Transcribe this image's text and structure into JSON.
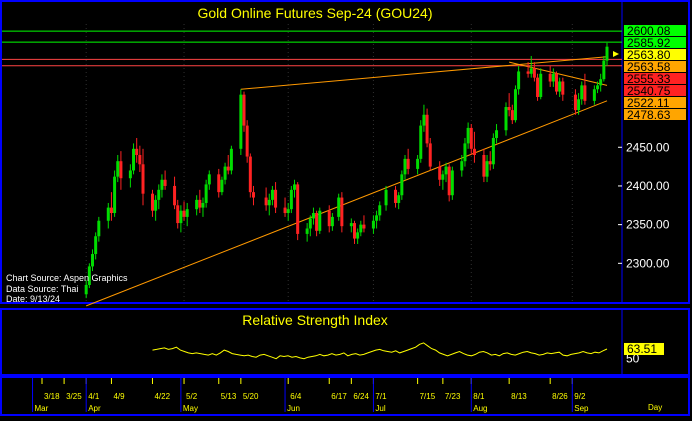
{
  "title": "Gold Online Futures Sep-24 (GOU24)",
  "info": {
    "chart_source": "Chart Source: Aspen Graphics",
    "data_source": "Data Source: Thai",
    "date": "Date: 9/13/24"
  },
  "colors": {
    "background": "#000000",
    "panel_border": "#0000ff",
    "title": "#ffff00",
    "up_candle": "#00dd00",
    "down_candle": "#ff2222",
    "trendline": "#ff9900",
    "resistance_green": "#00ff00",
    "resistance_red": "#ff4444",
    "rsi_line": "#ffff00",
    "axis_text": "#ffffff"
  },
  "chart_data": [
    {
      "type": "candlestick",
      "title": "Gold Online Futures Sep-24 (GOU24)",
      "ylim": [
        2250,
        2630
      ],
      "y_ticks": [
        2300,
        2350,
        2400,
        2450
      ],
      "x_tick_labels": [
        "3/18",
        "3/25",
        "4/1",
        "4/9",
        "4/22",
        "5/2",
        "5/13",
        "5/20",
        "6/4",
        "6/17",
        "6/24",
        "7/1",
        "7/15",
        "7/23",
        "8/1",
        "8/13",
        "8/26",
        "9/2"
      ],
      "month_labels": [
        "Mar",
        "Apr",
        "May",
        "Jun",
        "Jul",
        "Aug",
        "Sep"
      ],
      "right_label": "Day",
      "price_levels": [
        {
          "value": 2600.08,
          "label": "2600.08",
          "color": "#00ff00",
          "label_bg": "#00ff00",
          "label_fg": "#000000"
        },
        {
          "value": 2585.92,
          "label": "2585.92",
          "color": "#00ff00",
          "label_bg": "#00ff00",
          "label_fg": "#000000"
        },
        {
          "value": 2563.8,
          "label": "2563.80",
          "color": null,
          "label_bg": "#ffff00",
          "label_fg": "#000000"
        },
        {
          "value": 2563.58,
          "label": "2563.58",
          "color": "#ff4444",
          "label_bg": "#ffa500",
          "label_fg": "#000000"
        },
        {
          "value": 2555.33,
          "label": "2555.33",
          "color": "#ff4444",
          "label_bg": "#ff2222",
          "label_fg": "#000000"
        },
        {
          "value": 2540.75,
          "label": "2540.75",
          "color": null,
          "label_bg": "#ff2222",
          "label_fg": "#000000"
        },
        {
          "value": 2522.11,
          "label": "2522.11",
          "color": null,
          "label_bg": "#ffa500",
          "label_fg": "#000000"
        },
        {
          "value": 2478.63,
          "label": "2478.63",
          "color": null,
          "label_bg": "#ffa500",
          "label_fg": "#000000"
        }
      ],
      "trendlines": [
        {
          "from": [
            "5/20",
            2525
          ],
          "to": [
            "9/13",
            2567
          ]
        },
        {
          "from": [
            "4/1",
            2245
          ],
          "to": [
            "9/13",
            2510
          ]
        },
        {
          "from": [
            "8/13",
            2560
          ],
          "to": [
            "9/13",
            2530
          ]
        }
      ],
      "candles": [
        {
          "date": "4/1",
          "o": 2260,
          "h": 2278,
          "l": 2255,
          "c": 2272
        },
        {
          "date": "4/2",
          "o": 2272,
          "h": 2300,
          "l": 2268,
          "c": 2296
        },
        {
          "date": "4/3",
          "o": 2296,
          "h": 2318,
          "l": 2290,
          "c": 2312
        },
        {
          "date": "4/4",
          "o": 2312,
          "h": 2340,
          "l": 2305,
          "c": 2335
        },
        {
          "date": "4/5",
          "o": 2335,
          "h": 2360,
          "l": 2328,
          "c": 2355
        },
        {
          "date": "4/8",
          "o": 2355,
          "h": 2378,
          "l": 2345,
          "c": 2372
        },
        {
          "date": "4/9",
          "o": 2372,
          "h": 2392,
          "l": 2355,
          "c": 2365
        },
        {
          "date": "4/10",
          "o": 2365,
          "h": 2420,
          "l": 2360,
          "c": 2412
        },
        {
          "date": "4/11",
          "o": 2412,
          "h": 2440,
          "l": 2405,
          "c": 2432
        },
        {
          "date": "4/12",
          "o": 2432,
          "h": 2445,
          "l": 2395,
          "c": 2410
        },
        {
          "date": "4/15",
          "o": 2410,
          "h": 2428,
          "l": 2398,
          "c": 2420
        },
        {
          "date": "4/16",
          "o": 2420,
          "h": 2455,
          "l": 2415,
          "c": 2448
        },
        {
          "date": "4/17",
          "o": 2448,
          "h": 2462,
          "l": 2430,
          "c": 2440
        },
        {
          "date": "4/18",
          "o": 2440,
          "h": 2452,
          "l": 2418,
          "c": 2428
        },
        {
          "date": "4/19",
          "o": 2428,
          "h": 2448,
          "l": 2375,
          "c": 2390
        },
        {
          "date": "4/22",
          "o": 2390,
          "h": 2395,
          "l": 2360,
          "c": 2368
        },
        {
          "date": "4/23",
          "o": 2368,
          "h": 2388,
          "l": 2355,
          "c": 2382
        },
        {
          "date": "4/24",
          "o": 2382,
          "h": 2402,
          "l": 2370,
          "c": 2395
        },
        {
          "date": "4/25",
          "o": 2395,
          "h": 2415,
          "l": 2385,
          "c": 2408
        },
        {
          "date": "4/26",
          "o": 2408,
          "h": 2420,
          "l": 2395,
          "c": 2400
        },
        {
          "date": "4/29",
          "o": 2400,
          "h": 2412,
          "l": 2370,
          "c": 2375
        },
        {
          "date": "4/30",
          "o": 2375,
          "h": 2382,
          "l": 2345,
          "c": 2352
        },
        {
          "date": "5/1",
          "o": 2352,
          "h": 2375,
          "l": 2340,
          "c": 2368
        },
        {
          "date": "5/2",
          "o": 2368,
          "h": 2380,
          "l": 2355,
          "c": 2360
        },
        {
          "date": "5/3",
          "o": 2360,
          "h": 2378,
          "l": 2348,
          "c": 2370
        },
        {
          "date": "5/6",
          "o": 2370,
          "h": 2388,
          "l": 2362,
          "c": 2382
        },
        {
          "date": "5/7",
          "o": 2382,
          "h": 2395,
          "l": 2365,
          "c": 2372
        },
        {
          "date": "5/8",
          "o": 2372,
          "h": 2385,
          "l": 2360,
          "c": 2378
        },
        {
          "date": "5/9",
          "o": 2378,
          "h": 2408,
          "l": 2372,
          "c": 2402
        },
        {
          "date": "5/10",
          "o": 2402,
          "h": 2420,
          "l": 2395,
          "c": 2415
        },
        {
          "date": "5/13",
          "o": 2415,
          "h": 2422,
          "l": 2385,
          "c": 2392
        },
        {
          "date": "5/14",
          "o": 2392,
          "h": 2412,
          "l": 2388,
          "c": 2408
        },
        {
          "date": "5/15",
          "o": 2408,
          "h": 2430,
          "l": 2402,
          "c": 2425
        },
        {
          "date": "5/16",
          "o": 2425,
          "h": 2440,
          "l": 2415,
          "c": 2420
        },
        {
          "date": "5/17",
          "o": 2420,
          "h": 2452,
          "l": 2415,
          "c": 2448
        },
        {
          "date": "5/20",
          "o": 2448,
          "h": 2525,
          "l": 2440,
          "c": 2518
        },
        {
          "date": "5/21",
          "o": 2518,
          "h": 2522,
          "l": 2470,
          "c": 2478
        },
        {
          "date": "5/22",
          "o": 2478,
          "h": 2485,
          "l": 2430,
          "c": 2438
        },
        {
          "date": "5/23",
          "o": 2438,
          "h": 2442,
          "l": 2385,
          "c": 2392
        },
        {
          "date": "5/24",
          "o": 2392,
          "h": 2400,
          "l": 2375,
          "c": 2385
        },
        {
          "date": "5/28",
          "o": 2385,
          "h": 2398,
          "l": 2368,
          "c": 2375
        },
        {
          "date": "5/29",
          "o": 2375,
          "h": 2390,
          "l": 2362,
          "c": 2382
        },
        {
          "date": "5/30",
          "o": 2382,
          "h": 2400,
          "l": 2375,
          "c": 2395
        },
        {
          "date": "5/31",
          "o": 2395,
          "h": 2405,
          "l": 2365,
          "c": 2372
        },
        {
          "date": "6/3",
          "o": 2372,
          "h": 2385,
          "l": 2360,
          "c": 2365
        },
        {
          "date": "6/4",
          "o": 2365,
          "h": 2378,
          "l": 2355,
          "c": 2370
        },
        {
          "date": "6/5",
          "o": 2370,
          "h": 2400,
          "l": 2365,
          "c": 2395
        },
        {
          "date": "6/6",
          "o": 2395,
          "h": 2408,
          "l": 2385,
          "c": 2402
        },
        {
          "date": "6/7",
          "o": 2402,
          "h": 2405,
          "l": 2330,
          "c": 2338
        },
        {
          "date": "6/10",
          "o": 2338,
          "h": 2352,
          "l": 2328,
          "c": 2345
        },
        {
          "date": "6/11",
          "o": 2345,
          "h": 2362,
          "l": 2335,
          "c": 2358
        },
        {
          "date": "6/12",
          "o": 2358,
          "h": 2372,
          "l": 2350,
          "c": 2365
        },
        {
          "date": "6/13",
          "o": 2365,
          "h": 2368,
          "l": 2335,
          "c": 2342
        },
        {
          "date": "6/14",
          "o": 2342,
          "h": 2372,
          "l": 2338,
          "c": 2368
        },
        {
          "date": "6/17",
          "o": 2368,
          "h": 2375,
          "l": 2340,
          "c": 2348
        },
        {
          "date": "6/18",
          "o": 2348,
          "h": 2365,
          "l": 2342,
          "c": 2360
        },
        {
          "date": "6/20",
          "o": 2360,
          "h": 2390,
          "l": 2355,
          "c": 2385
        },
        {
          "date": "6/21",
          "o": 2385,
          "h": 2392,
          "l": 2340,
          "c": 2348
        },
        {
          "date": "6/24",
          "o": 2348,
          "h": 2358,
          "l": 2340,
          "c": 2352
        },
        {
          "date": "6/25",
          "o": 2352,
          "h": 2355,
          "l": 2325,
          "c": 2332
        },
        {
          "date": "6/26",
          "o": 2332,
          "h": 2345,
          "l": 2325,
          "c": 2340
        },
        {
          "date": "6/27",
          "o": 2340,
          "h": 2355,
          "l": 2335,
          "c": 2350
        },
        {
          "date": "6/28",
          "o": 2350,
          "h": 2362,
          "l": 2340,
          "c": 2345
        },
        {
          "date": "7/1",
          "o": 2345,
          "h": 2362,
          "l": 2338,
          "c": 2355
        },
        {
          "date": "7/2",
          "o": 2355,
          "h": 2368,
          "l": 2345,
          "c": 2362
        },
        {
          "date": "7/3",
          "o": 2362,
          "h": 2380,
          "l": 2355,
          "c": 2375
        },
        {
          "date": "7/5",
          "o": 2375,
          "h": 2400,
          "l": 2368,
          "c": 2395
        },
        {
          "date": "7/8",
          "o": 2395,
          "h": 2400,
          "l": 2372,
          "c": 2378
        },
        {
          "date": "7/9",
          "o": 2378,
          "h": 2392,
          "l": 2370,
          "c": 2388
        },
        {
          "date": "7/10",
          "o": 2388,
          "h": 2420,
          "l": 2382,
          "c": 2415
        },
        {
          "date": "7/11",
          "o": 2415,
          "h": 2440,
          "l": 2408,
          "c": 2435
        },
        {
          "date": "7/12",
          "o": 2435,
          "h": 2448,
          "l": 2415,
          "c": 2422
        },
        {
          "date": "7/15",
          "o": 2422,
          "h": 2440,
          "l": 2415,
          "c": 2435
        },
        {
          "date": "7/16",
          "o": 2435,
          "h": 2485,
          "l": 2430,
          "c": 2478
        },
        {
          "date": "7/17",
          "o": 2478,
          "h": 2505,
          "l": 2470,
          "c": 2492
        },
        {
          "date": "7/18",
          "o": 2492,
          "h": 2500,
          "l": 2450,
          "c": 2455
        },
        {
          "date": "7/19",
          "o": 2455,
          "h": 2462,
          "l": 2420,
          "c": 2425
        },
        {
          "date": "7/22",
          "o": 2425,
          "h": 2432,
          "l": 2400,
          "c": 2408
        },
        {
          "date": "7/23",
          "o": 2408,
          "h": 2420,
          "l": 2395,
          "c": 2415
        },
        {
          "date": "7/24",
          "o": 2415,
          "h": 2430,
          "l": 2405,
          "c": 2425
        },
        {
          "date": "7/25",
          "o": 2425,
          "h": 2428,
          "l": 2380,
          "c": 2388
        },
        {
          "date": "7/26",
          "o": 2388,
          "h": 2425,
          "l": 2382,
          "c": 2420
        },
        {
          "date": "7/29",
          "o": 2420,
          "h": 2440,
          "l": 2412,
          "c": 2432
        },
        {
          "date": "7/30",
          "o": 2432,
          "h": 2462,
          "l": 2425,
          "c": 2455
        },
        {
          "date": "7/31",
          "o": 2455,
          "h": 2482,
          "l": 2448,
          "c": 2475
        },
        {
          "date": "8/1",
          "o": 2475,
          "h": 2480,
          "l": 2440,
          "c": 2448
        },
        {
          "date": "8/2",
          "o": 2448,
          "h": 2470,
          "l": 2430,
          "c": 2440
        },
        {
          "date": "8/5",
          "o": 2440,
          "h": 2448,
          "l": 2405,
          "c": 2412
        },
        {
          "date": "8/6",
          "o": 2412,
          "h": 2440,
          "l": 2405,
          "c": 2432
        },
        {
          "date": "8/7",
          "o": 2432,
          "h": 2445,
          "l": 2420,
          "c": 2428
        },
        {
          "date": "8/8",
          "o": 2428,
          "h": 2468,
          "l": 2422,
          "c": 2462
        },
        {
          "date": "8/9",
          "o": 2462,
          "h": 2480,
          "l": 2455,
          "c": 2472
        },
        {
          "date": "8/12",
          "o": 2472,
          "h": 2508,
          "l": 2465,
          "c": 2502
        },
        {
          "date": "8/13",
          "o": 2502,
          "h": 2520,
          "l": 2490,
          "c": 2498
        },
        {
          "date": "8/14",
          "o": 2498,
          "h": 2505,
          "l": 2480,
          "c": 2485
        },
        {
          "date": "8/15",
          "o": 2485,
          "h": 2530,
          "l": 2482,
          "c": 2525
        },
        {
          "date": "8/16",
          "o": 2525,
          "h": 2555,
          "l": 2518,
          "c": 2548
        },
        {
          "date": "8/19",
          "o": 2548,
          "h": 2560,
          "l": 2540,
          "c": 2545
        },
        {
          "date": "8/20",
          "o": 2545,
          "h": 2568,
          "l": 2540,
          "c": 2552
        },
        {
          "date": "8/21",
          "o": 2552,
          "h": 2560,
          "l": 2535,
          "c": 2540
        },
        {
          "date": "8/22",
          "o": 2540,
          "h": 2545,
          "l": 2510,
          "c": 2515
        },
        {
          "date": "8/23",
          "o": 2515,
          "h": 2552,
          "l": 2512,
          "c": 2545
        },
        {
          "date": "8/26",
          "o": 2545,
          "h": 2555,
          "l": 2528,
          "c": 2535
        },
        {
          "date": "8/27",
          "o": 2535,
          "h": 2552,
          "l": 2528,
          "c": 2545
        },
        {
          "date": "8/28",
          "o": 2545,
          "h": 2548,
          "l": 2518,
          "c": 2522
        },
        {
          "date": "8/29",
          "o": 2522,
          "h": 2540,
          "l": 2515,
          "c": 2535
        },
        {
          "date": "8/30",
          "o": 2535,
          "h": 2540,
          "l": 2510,
          "c": 2518
        },
        {
          "date": "9/3",
          "o": 2518,
          "h": 2525,
          "l": 2492,
          "c": 2498
        },
        {
          "date": "9/4",
          "o": 2498,
          "h": 2520,
          "l": 2492,
          "c": 2512
        },
        {
          "date": "9/5",
          "o": 2512,
          "h": 2535,
          "l": 2505,
          "c": 2530
        },
        {
          "date": "9/6",
          "o": 2530,
          "h": 2545,
          "l": 2505,
          "c": 2510
        },
        {
          "date": "9/9",
          "o": 2510,
          "h": 2530,
          "l": 2505,
          "c": 2525
        },
        {
          "date": "9/10",
          "o": 2525,
          "h": 2535,
          "l": 2520,
          "c": 2530
        },
        {
          "date": "9/11",
          "o": 2530,
          "h": 2545,
          "l": 2522,
          "c": 2538
        },
        {
          "date": "9/12",
          "o": 2538,
          "h": 2568,
          "l": 2535,
          "c": 2562
        },
        {
          "date": "9/13",
          "o": 2562,
          "h": 2585,
          "l": 2555,
          "c": 2580
        }
      ]
    },
    {
      "type": "line",
      "title": "Relative Strength Index",
      "ylim": [
        30,
        90
      ],
      "y_ticks": [
        50
      ],
      "last_value": "63.51",
      "start_date": "4/22",
      "end_date": "9/13",
      "values": [
        62,
        63,
        64,
        65,
        63,
        64,
        66,
        62,
        60,
        58,
        57,
        58,
        57,
        56,
        55,
        57,
        55,
        58,
        62,
        60,
        57,
        56,
        55,
        54,
        55,
        53,
        52,
        55,
        56,
        54,
        52,
        50,
        54,
        53,
        54,
        52,
        53,
        51,
        50,
        52,
        53,
        54,
        56,
        54,
        55,
        57,
        55,
        56,
        58,
        54,
        56,
        57,
        55,
        56,
        58,
        60,
        62,
        63,
        61,
        60,
        59,
        61,
        58,
        60,
        62,
        64,
        66,
        70,
        72,
        68,
        64,
        62,
        58,
        56,
        54,
        56,
        58,
        60,
        57,
        55,
        54,
        56,
        59,
        60,
        58,
        55,
        56,
        54,
        57,
        58,
        56,
        55,
        57,
        59,
        60,
        58,
        57,
        55,
        56,
        58,
        57,
        58,
        59,
        55,
        54,
        56,
        57,
        58,
        60,
        58,
        57,
        59,
        58,
        61,
        63.51
      ]
    }
  ]
}
